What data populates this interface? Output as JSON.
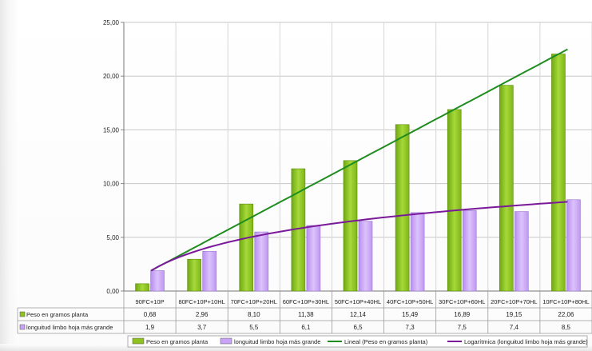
{
  "chart_data": {
    "type": "bar",
    "title": "",
    "xlabel": "",
    "ylabel": "",
    "ylim": [
      0,
      25
    ],
    "y_ticks": [
      "0,00",
      "5,00",
      "10,00",
      "15,00",
      "20,00",
      "25,00"
    ],
    "grid": true,
    "legend_position": "bottom-right",
    "categories": [
      "90FC+10P",
      "80FC+10P+10HL",
      "70FC+10P+20HL",
      "60FC+10P+30HL",
      "50FC+10P+40HL",
      "40FC+10P+50HL",
      "30FC+10P+60HL",
      "20FC+10P+70HL",
      "10FC+10P+80HL"
    ],
    "series": [
      {
        "name": "Peso en gramos planta",
        "color": "#8dc21f",
        "values": [
          0.68,
          2.96,
          8.1,
          11.38,
          12.14,
          15.49,
          16.89,
          19.15,
          22.06
        ],
        "labels": [
          "0,68",
          "2,96",
          "8,10",
          "11,38",
          "12,14",
          "15,49",
          "16,89",
          "19,15",
          "22,06"
        ]
      },
      {
        "name": "longuitud limbo hoja más grande",
        "color": "#c9a3f5",
        "values": [
          1.9,
          3.7,
          5.5,
          6.1,
          6.5,
          7.3,
          7.5,
          7.4,
          8.5
        ],
        "labels": [
          "1,9",
          "3,7",
          "5,5",
          "6,1",
          "6,5",
          "7,3",
          "7,5",
          "7,4",
          "8,5"
        ]
      }
    ],
    "trendlines": [
      {
        "name": "Lineal (Peso en gramos planta)",
        "type": "linear",
        "color": "#1e8c1e",
        "start": 1.9,
        "end": 22.5
      },
      {
        "name": "Logarítmica (longuitud limbo hoja más grande)",
        "type": "log",
        "color": "#7a1a9a",
        "start": 1.9,
        "end": 8.3
      }
    ]
  }
}
